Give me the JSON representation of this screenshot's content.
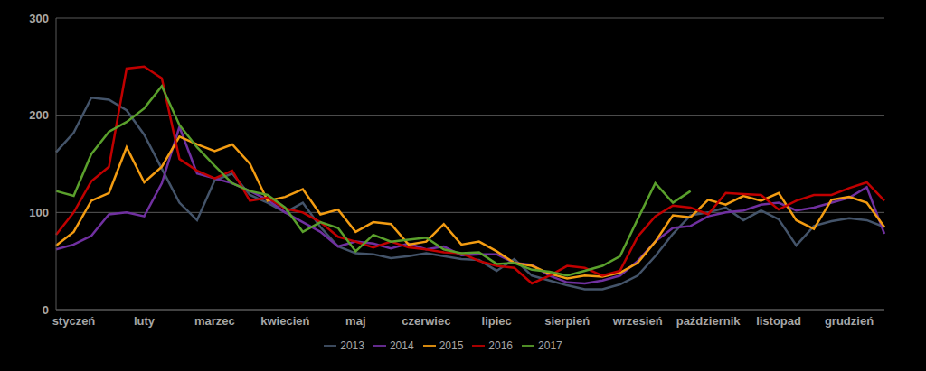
{
  "chart_data": {
    "type": "line",
    "categories": [
      null,
      "styczeń",
      null,
      null,
      null,
      "luty",
      null,
      null,
      null,
      "marzec",
      null,
      null,
      null,
      "kwiecień",
      null,
      null,
      null,
      "maj",
      null,
      null,
      null,
      "czerwiec",
      null,
      null,
      null,
      "lipiec",
      null,
      null,
      null,
      "sierpień",
      null,
      null,
      null,
      "wrzesień",
      null,
      null,
      null,
      "październik",
      null,
      null,
      null,
      "listopad",
      null,
      null,
      null,
      "grudzień",
      null,
      null
    ],
    "series": [
      {
        "name": "2013",
        "color": "#44546a",
        "values": [
          162,
          182,
          218,
          216,
          205,
          180,
          145,
          110,
          92,
          133,
          140,
          118,
          110,
          100,
          110,
          85,
          65,
          58,
          57,
          53,
          55,
          58,
          55,
          52,
          51,
          40,
          52,
          35,
          30,
          25,
          21,
          21,
          26,
          35,
          55,
          78,
          97,
          100,
          105,
          92,
          102,
          93,
          66,
          86,
          91,
          94,
          92,
          85
        ]
      },
      {
        "name": "2014",
        "color": "#7030a0",
        "values": [
          62,
          67,
          76,
          98,
          100,
          96,
          130,
          188,
          140,
          135,
          130,
          122,
          113,
          100,
          90,
          80,
          65,
          70,
          68,
          63,
          68,
          62,
          65,
          56,
          57,
          57,
          48,
          46,
          35,
          28,
          27,
          30,
          35,
          50,
          70,
          84,
          86,
          96,
          100,
          102,
          108,
          110,
          102,
          105,
          110,
          115,
          126,
          78
        ]
      },
      {
        "name": "2015",
        "color": "#f39c12",
        "values": [
          66,
          80,
          112,
          120,
          167,
          131,
          147,
          178,
          170,
          163,
          170,
          150,
          112,
          116,
          124,
          98,
          103,
          80,
          90,
          88,
          67,
          70,
          88,
          67,
          70,
          60,
          48,
          45,
          37,
          32,
          35,
          34,
          38,
          48,
          70,
          97,
          95,
          113,
          108,
          117,
          112,
          120,
          92,
          83,
          113,
          116,
          110,
          85
        ]
      },
      {
        "name": "2016",
        "color": "#c00000",
        "values": [
          77,
          100,
          132,
          147,
          248,
          250,
          238,
          155,
          143,
          135,
          143,
          112,
          115,
          104,
          100,
          90,
          75,
          70,
          64,
          70,
          64,
          62,
          59,
          58,
          50,
          45,
          43,
          27,
          35,
          45,
          43,
          35,
          40,
          75,
          96,
          107,
          105,
          98,
          120,
          119,
          118,
          103,
          112,
          118,
          118,
          125,
          131,
          112
        ]
      },
      {
        "name": "2017",
        "color": "#5aa02c",
        "values": [
          122,
          117,
          160,
          183,
          193,
          207,
          230,
          190,
          167,
          148,
          130,
          122,
          118,
          105,
          80,
          90,
          84,
          60,
          77,
          70,
          72,
          74,
          62,
          58,
          59,
          47,
          48,
          41,
          39,
          35,
          40,
          45,
          55,
          93,
          130,
          110,
          122,
          null,
          null,
          null,
          null,
          null,
          null,
          null,
          null,
          null,
          null,
          null
        ]
      }
    ],
    "ylim": [
      0,
      300
    ],
    "yticks": [
      0,
      100,
      200,
      300
    ],
    "grid": true,
    "legend": "bottom"
  }
}
